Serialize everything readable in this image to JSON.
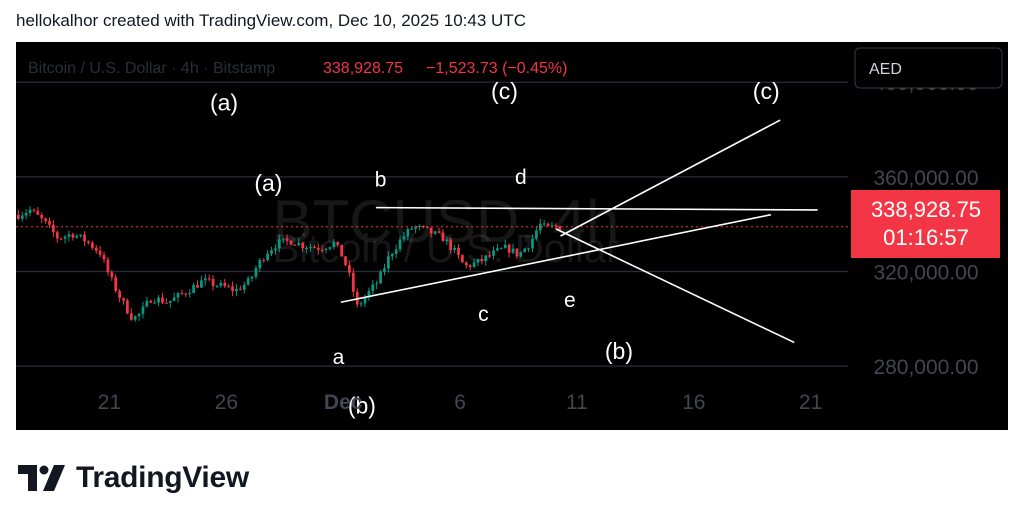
{
  "header_text": "hellokalhor created with TradingView.com, Dec 10, 2025 10:43 UTC",
  "brand": {
    "name": "TradingView",
    "logo_icon": "tradingview-logo-icon"
  },
  "chart_data": {
    "type": "candlestick",
    "symbol_info": "Bitcoin / U.S. Dollar · 4h · Bitstamp",
    "watermark_symbol": "BTCUSD, 4h",
    "watermark_name": "Bitcoin / U.S. Dollar",
    "last_price": "338,928.75",
    "change": "−1,523.73 (−0.45%)",
    "countdown": "01:16:57",
    "currency": "AED",
    "y_ticks": [
      "400,000.00",
      "360,000.00",
      "320,000.00",
      "280,000.00"
    ],
    "y_tick_values": [
      400000,
      360000,
      320000,
      280000
    ],
    "ylim": [
      253000,
      417000
    ],
    "xlim": [
      17,
      22.5
    ],
    "x_ticks": [
      {
        "label": "21",
        "x": 21,
        "bold": false
      },
      {
        "label": "26",
        "x": 26,
        "bold": false
      },
      {
        "label": "Dec",
        "x": 31,
        "bold": true
      },
      {
        "label": "6",
        "x": 36,
        "bold": false
      },
      {
        "label": "11",
        "x": 41,
        "bold": false
      },
      {
        "label": "16",
        "x": 46,
        "bold": false
      },
      {
        "label": "21",
        "x": 51,
        "bold": false
      }
    ],
    "ohlc_anchors": [
      [
        17.1,
        344000
      ],
      [
        17.6,
        346000
      ],
      [
        18.2,
        341000
      ],
      [
        18.8,
        334000
      ],
      [
        19.4,
        336000
      ],
      [
        20.0,
        333000
      ],
      [
        20.6,
        328000
      ],
      [
        21.0,
        318000
      ],
      [
        21.5,
        308000
      ],
      [
        22.0,
        300000
      ],
      [
        22.3,
        302000
      ],
      [
        22.8,
        309000
      ],
      [
        23.5,
        307000
      ],
      [
        24.2,
        311000
      ],
      [
        25.0,
        316000
      ],
      [
        25.7,
        314000
      ],
      [
        26.4,
        312000
      ],
      [
        27.0,
        316000
      ],
      [
        27.3,
        322000
      ],
      [
        27.7,
        328000
      ],
      [
        28.2,
        332000
      ],
      [
        28.8,
        333000
      ],
      [
        29.3,
        331000
      ],
      [
        30.0,
        330000
      ],
      [
        30.6,
        332000
      ],
      [
        31.0,
        326000
      ],
      [
        31.3,
        317000
      ],
      [
        31.6,
        305000
      ],
      [
        32.0,
        310000
      ],
      [
        32.5,
        316000
      ],
      [
        33.0,
        327000
      ],
      [
        33.5,
        334000
      ],
      [
        34.0,
        339000
      ],
      [
        34.6,
        337000
      ],
      [
        35.3,
        334000
      ],
      [
        35.8,
        328000
      ],
      [
        36.2,
        322000
      ],
      [
        36.8,
        324000
      ],
      [
        37.5,
        328000
      ],
      [
        38.0,
        330000
      ],
      [
        38.5,
        327000
      ],
      [
        39.0,
        332000
      ],
      [
        39.4,
        340000
      ],
      [
        39.7,
        338000
      ],
      [
        40.0,
        339000
      ],
      [
        40.3,
        338929
      ]
    ],
    "wave_labels": [
      {
        "text": "(a)",
        "x": 25.9,
        "y": 388000,
        "size": 23
      },
      {
        "text": "(a)",
        "x": 27.8,
        "y": 354000,
        "size": 23
      },
      {
        "text": "(c)",
        "x": 37.9,
        "y": 393000,
        "size": 23
      },
      {
        "text": "(c)",
        "x": 49.1,
        "y": 393000,
        "size": 23
      },
      {
        "text": "b",
        "x": 32.6,
        "y": 356000,
        "size": 21
      },
      {
        "text": "d",
        "x": 38.6,
        "y": 357000,
        "size": 21
      },
      {
        "text": "c",
        "x": 37.0,
        "y": 299000,
        "size": 21
      },
      {
        "text": "e",
        "x": 40.7,
        "y": 305000,
        "size": 21
      },
      {
        "text": "a",
        "x": 30.8,
        "y": 281000,
        "size": 21
      },
      {
        "text": "(b)",
        "x": 31.8,
        "y": 260000,
        "size": 23
      },
      {
        "text": "(b)",
        "x": 42.8,
        "y": 283000,
        "size": 23
      }
    ],
    "trendlines": [
      {
        "from": [
          30.9,
          307000
        ],
        "to": [
          49.3,
          344000
        ]
      },
      {
        "from": [
          32.4,
          347000
        ],
        "to": [
          51.3,
          346000
        ]
      },
      {
        "from": [
          40.3,
          335000
        ],
        "to": [
          49.7,
          384000
        ]
      },
      {
        "from": [
          40.1,
          338000
        ],
        "to": [
          50.3,
          290000
        ]
      }
    ]
  }
}
